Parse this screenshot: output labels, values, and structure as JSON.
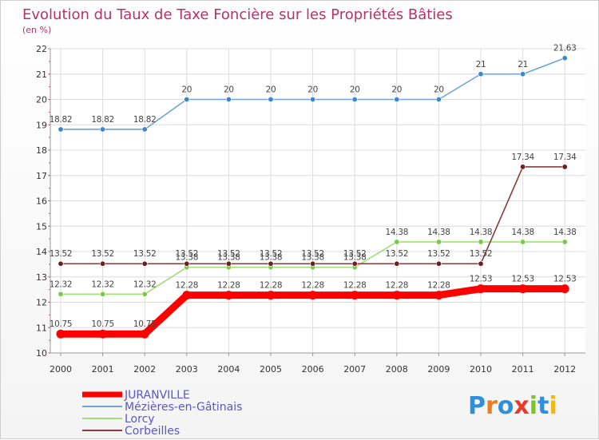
{
  "chart_data": {
    "type": "line",
    "title": "Evolution du Taux de Taxe Foncière sur les Propriétés Bâties",
    "subtitle": "(en %)",
    "xlabel": "",
    "ylabel": "",
    "x": [
      "2000",
      "2001",
      "2002",
      "2003",
      "2004",
      "2005",
      "2006",
      "2007",
      "2008",
      "2009",
      "2010",
      "2011",
      "2012"
    ],
    "ylim": [
      10,
      22
    ],
    "yticks": [
      "10",
      "11",
      "12",
      "13",
      "14",
      "15",
      "16",
      "17",
      "18",
      "19",
      "20",
      "21",
      "22"
    ],
    "grid": true,
    "legend_position": "bottom-left",
    "series": [
      {
        "name": "Mézières-en-Gâtinais",
        "color": "#6fa3d6",
        "marker_color": "#3d86c8",
        "values": [
          18.82,
          18.82,
          18.82,
          20,
          20,
          20,
          20,
          20,
          20,
          20,
          21,
          21,
          21.63
        ],
        "labels": [
          "18.82",
          "18.82",
          "18.82",
          "20",
          "20",
          "20",
          "20",
          "20",
          "20",
          "20",
          "21",
          "21",
          "21.63"
        ]
      },
      {
        "name": "Lorcy",
        "color": "#a3dc7a",
        "marker_color": "#7dc74a",
        "values": [
          12.32,
          12.32,
          12.32,
          13.38,
          13.38,
          13.38,
          13.38,
          13.38,
          14.38,
          14.38,
          14.38,
          14.38,
          14.38
        ],
        "labels": [
          "12.32",
          "12.32",
          "12.32",
          "13.38",
          "13.38",
          "13.38",
          "13.38",
          "13.38",
          "14.38",
          "14.38",
          "14.38",
          "14.38",
          "14.38"
        ]
      },
      {
        "name": "Corbeilles",
        "color": "#8b3a3a",
        "marker_color": "#6b1f1f",
        "values": [
          13.52,
          13.52,
          13.52,
          13.52,
          13.52,
          13.52,
          13.52,
          13.52,
          13.52,
          13.52,
          13.52,
          17.34,
          17.34
        ],
        "labels": [
          "13.52",
          "13.52",
          "13.52",
          "13.52",
          "13.52",
          "13.52",
          "13.52",
          "13.52",
          "13.52",
          "13.52",
          "13.52",
          "17.34",
          "17.34"
        ]
      },
      {
        "name": "JURANVILLE",
        "color": "#ff0000",
        "marker_color": "#ff0000",
        "values": [
          10.75,
          10.75,
          10.75,
          12.28,
          12.28,
          12.28,
          12.28,
          12.28,
          12.28,
          12.28,
          12.53,
          12.53,
          12.53
        ],
        "labels": [
          "10.75",
          "10.75",
          "10.75",
          "12.28",
          "12.28",
          "12.28",
          "12.28",
          "12.28",
          "12.28",
          "12.28",
          "12.53",
          "12.53",
          "12.53"
        ]
      }
    ],
    "legend": [
      {
        "name": "JURANVILLE",
        "color": "#ff0000"
      },
      {
        "name": "Mézières-en-Gâtinais",
        "color": "#6fa3d6"
      },
      {
        "name": "Lorcy",
        "color": "#a3dc7a"
      },
      {
        "name": "Corbeilles",
        "color": "#8b3a3a"
      }
    ]
  },
  "logo": {
    "text": "Proxiti",
    "letters": [
      "P",
      "r",
      "o",
      "x",
      "i",
      "t",
      "i"
    ],
    "colors": [
      "#2f8fd8",
      "#f07c1c",
      "#2f8fd8",
      "#e83a2a",
      "#7cc42a",
      "#2f8fd8",
      "#f0b81c"
    ]
  }
}
